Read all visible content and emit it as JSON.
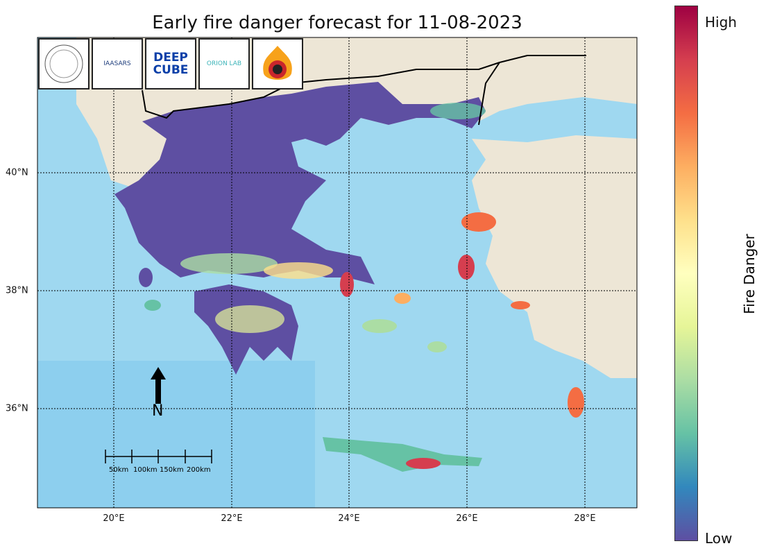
{
  "title": "Early fire danger forecast for 11-08-2023",
  "logos": [
    {
      "name": "national-observatory-athens",
      "text": "National Observatory Athens"
    },
    {
      "name": "iaasars",
      "text": "IAASARS"
    },
    {
      "name": "deepcube",
      "text": "DEEP CUBE"
    },
    {
      "name": "orion-lab",
      "text": "ORION LAB"
    },
    {
      "name": "fire-service",
      "text": ""
    }
  ],
  "x_ticks": [
    "20°E",
    "22°E",
    "24°E",
    "26°E",
    "28°E"
  ],
  "y_ticks": [
    "40°N",
    "38°N",
    "36°N"
  ],
  "north_label": "N",
  "scale_labels": [
    "50km",
    "100km",
    "150km",
    "200km"
  ],
  "colorbar": {
    "label": "Fire Danger",
    "high": "High",
    "low": "Low",
    "colormap": "Spectral (reversed)",
    "colors": [
      "#9e0142",
      "#d53e4f",
      "#f46d43",
      "#fdae61",
      "#fee08b",
      "#ffffbf",
      "#e6f598",
      "#abdda4",
      "#66c2a5",
      "#3288bd",
      "#5e4fa2"
    ]
  },
  "colors": {
    "sea": "#9fd8f0",
    "land": "#ede6d6",
    "low_danger": "#5e4fa2",
    "high_danger": "#d53e4f"
  }
}
